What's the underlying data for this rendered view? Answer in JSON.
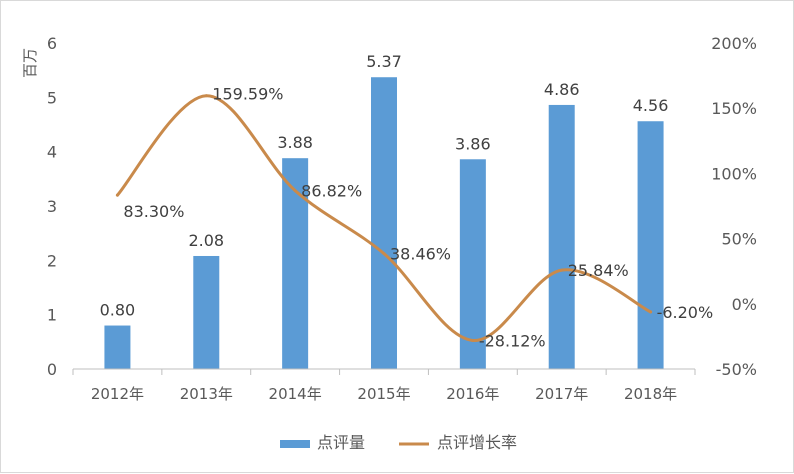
{
  "chart_data": {
    "type": "bar",
    "categories": [
      "2012年",
      "2013年",
      "2014年",
      "2015年",
      "2016年",
      "2017年",
      "2018年"
    ],
    "series": [
      {
        "name": "点评量",
        "type": "bar",
        "axis": "left",
        "values": [
          0.8,
          2.08,
          3.88,
          5.37,
          3.86,
          4.86,
          4.56
        ],
        "labels": [
          "0.80",
          "2.08",
          "3.88",
          "5.37",
          "3.86",
          "4.86",
          "4.56"
        ],
        "color": "#5b9bd5"
      },
      {
        "name": "点评增长率",
        "type": "line",
        "axis": "right",
        "values": [
          83.3,
          159.59,
          86.82,
          38.46,
          -28.12,
          25.84,
          -6.2
        ],
        "labels": [
          "83.30%",
          "159.59%",
          "86.82%",
          "38.46%",
          "-28.12%",
          "25.84%",
          "-6.20%"
        ],
        "color": "#c98a4b",
        "smooth": true
      }
    ],
    "ylabel": "百万",
    "ylim": [
      0,
      6
    ],
    "yticks": [
      "0",
      "1",
      "2",
      "3",
      "4",
      "5",
      "6"
    ],
    "y2lim": [
      -50,
      200
    ],
    "y2ticks": [
      "-50%",
      "0%",
      "50%",
      "100%",
      "150%",
      "200%"
    ],
    "grid": false,
    "legend_position": "bottom"
  }
}
